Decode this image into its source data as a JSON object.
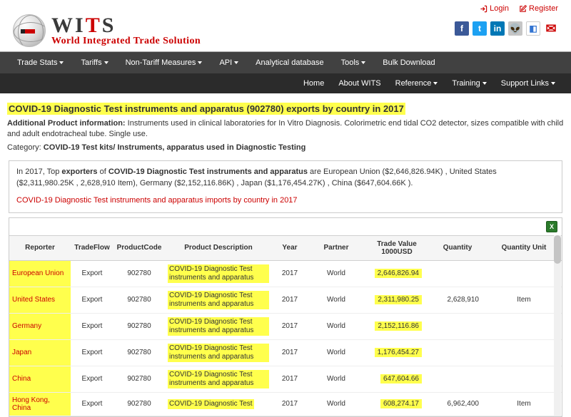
{
  "auth": {
    "login": "Login",
    "register": "Register"
  },
  "brand": {
    "wits_pre": "WI",
    "wits_t": "T",
    "wits_post": "S",
    "subtitle": "World Integrated Trade Solution"
  },
  "social": {
    "items": [
      {
        "name": "facebook-icon",
        "bg": "#3b5998",
        "glyph": "f"
      },
      {
        "name": "twitter-icon",
        "bg": "#1da1f2",
        "glyph": "t"
      },
      {
        "name": "linkedin-icon",
        "bg": "#0077b5",
        "glyph": "in"
      },
      {
        "name": "reddit-icon",
        "bg": "#c6c6c6",
        "glyph": "👽"
      },
      {
        "name": "delicious-icon",
        "bg": "#ffffff",
        "glyph": "◧"
      },
      {
        "name": "email-icon",
        "bg": "transparent",
        "glyph": "✉"
      }
    ]
  },
  "nav1": [
    {
      "label": "Trade Stats",
      "drop": true
    },
    {
      "label": "Tariffs",
      "drop": true
    },
    {
      "label": "Non-Tariff Measures",
      "drop": true
    },
    {
      "label": "API",
      "drop": true
    },
    {
      "label": "Analytical database",
      "drop": false
    },
    {
      "label": "Tools",
      "drop": true
    },
    {
      "label": "Bulk Download",
      "drop": false
    }
  ],
  "nav2": [
    {
      "label": "Home",
      "drop": false
    },
    {
      "label": "About WITS",
      "drop": false
    },
    {
      "label": "Reference",
      "drop": true
    },
    {
      "label": "Training",
      "drop": true
    },
    {
      "label": "Support Links",
      "drop": true
    }
  ],
  "page": {
    "title": "COVID-19 Diagnostic Test instruments and apparatus (902780) exports by country in 2017",
    "addl_label": "Additional Product information:",
    "addl_text": "Instruments used in clinical laboratories for In Vitro Diagnosis. Colorimetric end tidal CO2 detector, sizes compatible with child and adult endotracheal tube. Single use.",
    "cat_label": "Category:",
    "cat_text": "COVID-19 Test kits/ Instruments, apparatus used in Diagnostic Testing",
    "summary_pre": "In 2017, Top ",
    "summary_bold1": "exporters",
    "summary_mid": " of ",
    "summary_bold2": "COVID-19 Diagnostic Test instruments and apparatus",
    "summary_post": " are European Union ($2,646,826.94K) , United States ($2,311,980.25K , 2,628,910 Item), Germany ($2,152,116.86K) , Japan ($1,176,454.27K) , China ($647,604.66K ).",
    "related_link": "COVID-19 Diagnostic Test instruments and apparatus imports by country in 2017"
  },
  "table": {
    "export_label": "X",
    "columns": [
      "Reporter",
      "TradeFlow",
      "ProductCode",
      "Product Description",
      "Year",
      "Partner",
      "Trade Value 1000USD",
      "Quantity",
      "Quantity Unit"
    ],
    "rows": [
      {
        "reporter": "European Union",
        "flow": "Export",
        "code": "902780",
        "desc": "COVID-19 Diagnostic Test instruments and apparatus",
        "year": "2017",
        "partner": "World",
        "value": "2,646,826.94",
        "qty": "",
        "unit": ""
      },
      {
        "reporter": "United States",
        "flow": "Export",
        "code": "902780",
        "desc": "COVID-19 Diagnostic Test instruments and apparatus",
        "year": "2017",
        "partner": "World",
        "value": "2,311,980.25",
        "qty": "2,628,910",
        "unit": "Item"
      },
      {
        "reporter": "Germany",
        "flow": "Export",
        "code": "902780",
        "desc": "COVID-19 Diagnostic Test instruments and apparatus",
        "year": "2017",
        "partner": "World",
        "value": "2,152,116.86",
        "qty": "",
        "unit": ""
      },
      {
        "reporter": "Japan",
        "flow": "Export",
        "code": "902780",
        "desc": "COVID-19 Diagnostic Test instruments and apparatus",
        "year": "2017",
        "partner": "World",
        "value": "1,176,454.27",
        "qty": "",
        "unit": ""
      },
      {
        "reporter": "China",
        "flow": "Export",
        "code": "902780",
        "desc": "COVID-19 Diagnostic Test instruments and apparatus",
        "year": "2017",
        "partner": "World",
        "value": "647,604.66",
        "qty": "",
        "unit": ""
      },
      {
        "reporter": "Hong Kong, China",
        "flow": "Export",
        "code": "902780",
        "desc": "COVID-19 Diagnostic Test",
        "year": "2017",
        "partner": "World",
        "value": "608,274.17",
        "qty": "6,962,400",
        "unit": "Item"
      }
    ]
  }
}
